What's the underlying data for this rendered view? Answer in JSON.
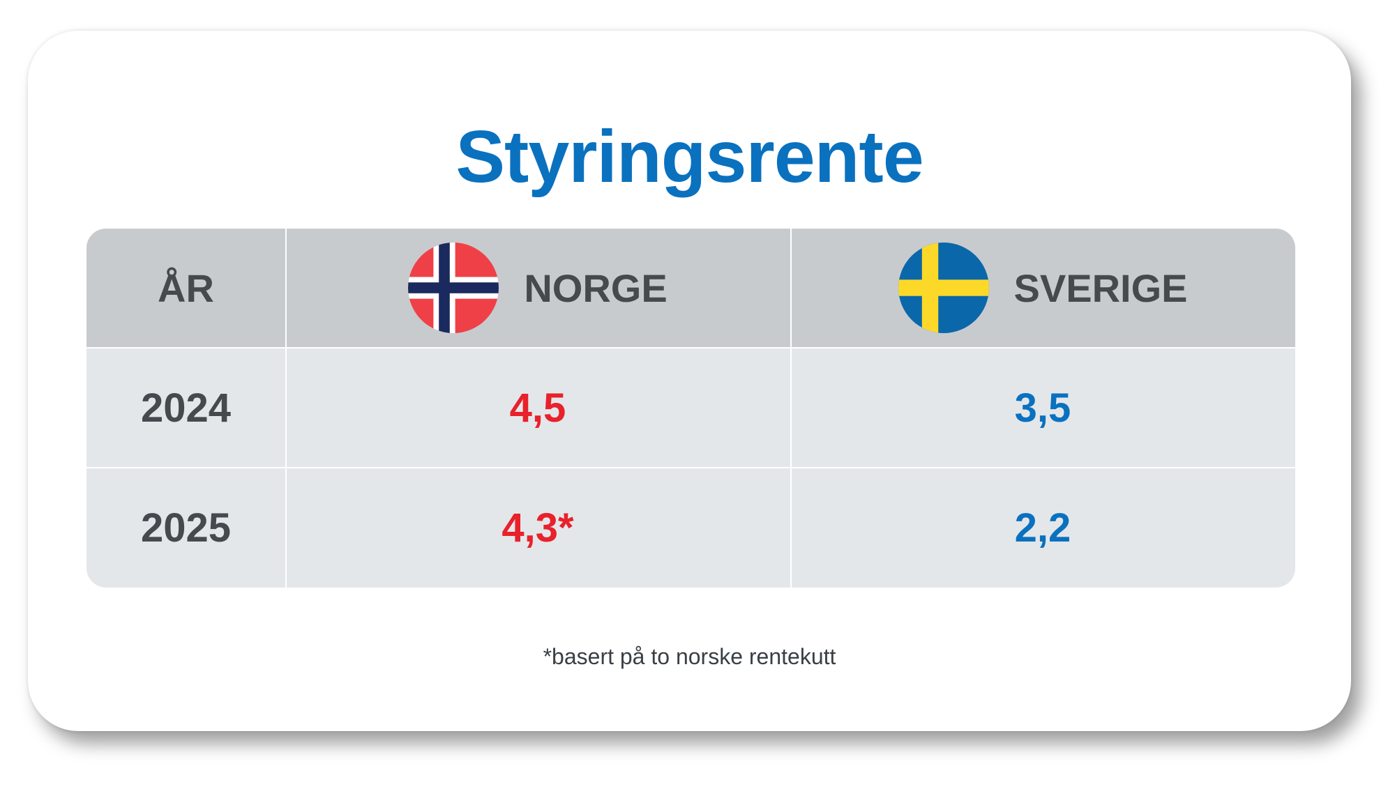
{
  "title": "Styringsrente",
  "table": {
    "headers": {
      "year": "ÅR",
      "norway": "NORGE",
      "sweden": "SVERIGE"
    },
    "flags": {
      "norway": "norway-flag-icon",
      "sweden": "sweden-flag-icon"
    },
    "rows": [
      {
        "year": "2024",
        "norway": "4,5",
        "sweden": "3,5"
      },
      {
        "year": "2025",
        "norway": "4,3*",
        "sweden": "2,2"
      }
    ]
  },
  "footnote": "*basert på to norske rentekutt",
  "colors": {
    "title": "#0a71bf",
    "norway_value": "#e8212b",
    "sweden_value": "#0a71bf",
    "header_bg": "#c8cbce",
    "row_bg": "#e4e7ea",
    "text_dark": "#454a4f"
  }
}
